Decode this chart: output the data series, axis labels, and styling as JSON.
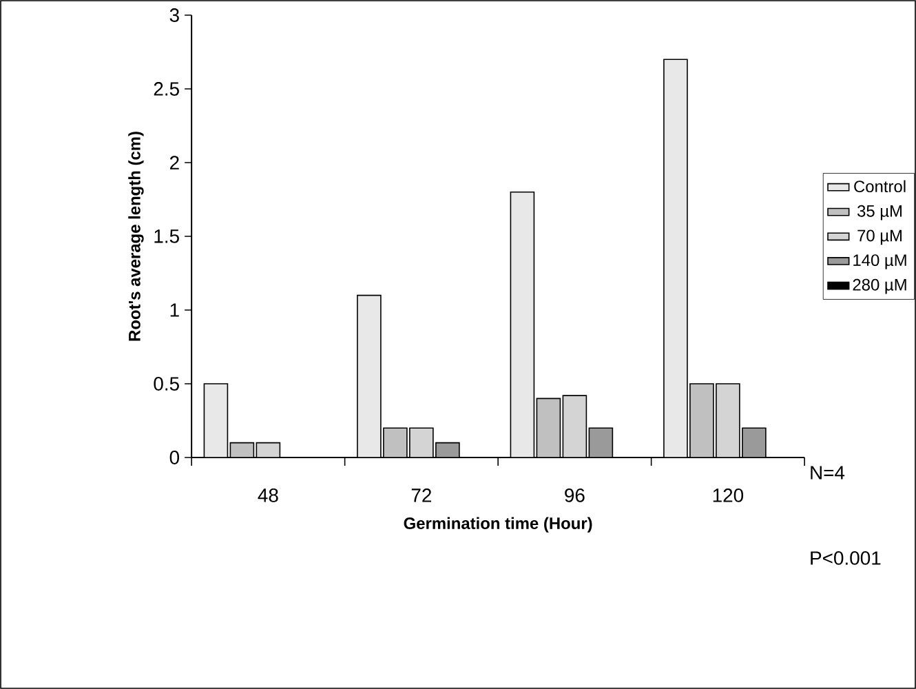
{
  "chart_data": {
    "type": "bar",
    "xlabel": "Germination time (Hour)",
    "ylabel": "Root's average length (cm)",
    "categories": [
      "48",
      "72",
      "96",
      "120"
    ],
    "series": [
      {
        "name": "Control",
        "color": "#e8e8e8",
        "values": [
          0.5,
          1.1,
          1.8,
          2.7
        ]
      },
      {
        "name": "35 µM",
        "color": "#c0c0c0",
        "values": [
          0.1,
          0.2,
          0.4,
          0.5
        ]
      },
      {
        "name": "70 µM",
        "color": "#d4d4d4",
        "values": [
          0.1,
          0.2,
          0.42,
          0.5
        ]
      },
      {
        "name": "140 µM",
        "color": "#9a9a9a",
        "values": [
          0,
          0.1,
          0.2,
          0.2
        ]
      },
      {
        "name": "280 µM",
        "color": "#000000",
        "values": [
          0,
          0,
          0,
          0
        ]
      }
    ],
    "ylim": [
      0,
      3
    ],
    "yticks": [
      0,
      0.5,
      1,
      1.5,
      2,
      2.5,
      3
    ],
    "grid": false,
    "legend": "right",
    "annotations": [
      "N=4",
      "P<0.001"
    ]
  }
}
